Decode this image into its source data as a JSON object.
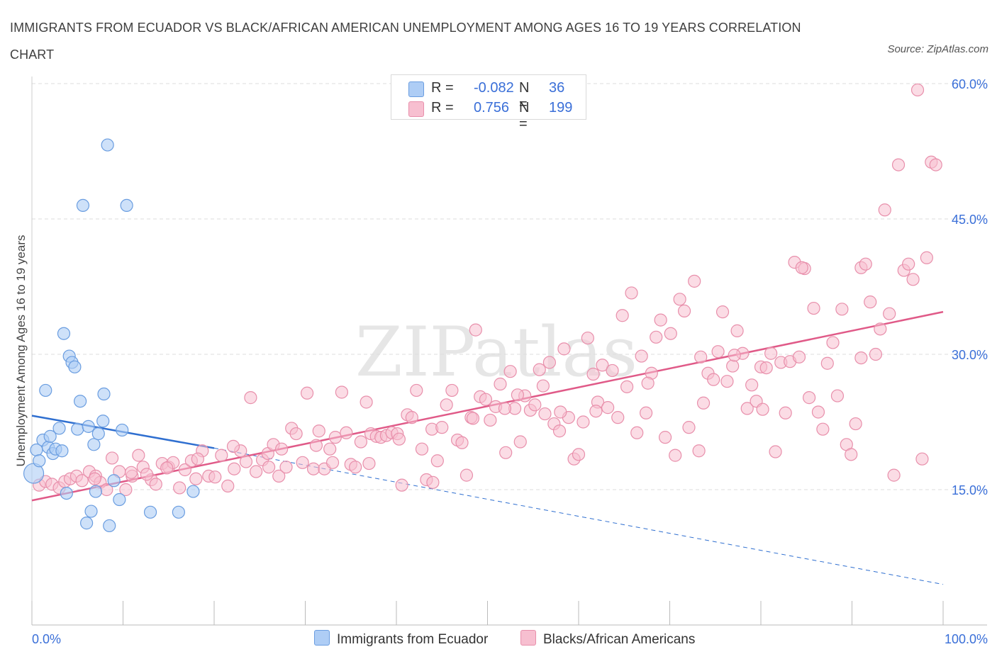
{
  "title": "IMMIGRANTS FROM ECUADOR VS BLACK/AFRICAN AMERICAN UNEMPLOYMENT AMONG AGES 16 TO 19 YEARS CORRELATION CHART",
  "source": "Source: ZipAtlas.com",
  "watermark": "ZIPatlas",
  "legend": {
    "rows": [
      {
        "r_label": "R =",
        "r_value": "-0.082",
        "n_label": "N =",
        "n_value": "36",
        "color": "#9ec3f2"
      },
      {
        "r_label": "R =",
        "r_value": "0.756",
        "n_label": "N =",
        "n_value": "199",
        "color": "#f6b6c9"
      }
    ]
  },
  "bottom_legend": [
    {
      "label": "Immigrants from Ecuador",
      "color": "#9ec3f2"
    },
    {
      "label": "Blacks/African Americans",
      "color": "#f6b6c9"
    }
  ],
  "colors": {
    "blue_fill": "#aecdf5",
    "blue_stroke": "#6a9de0",
    "blue_line": "#2f6fd0",
    "pink_fill": "#f7bfd0",
    "pink_stroke": "#e88fab",
    "pink_line": "#e05a88",
    "tick_label": "#3a6fd8",
    "grid": "#dddddd"
  },
  "chart_data": {
    "type": "scatter",
    "title": "IMMIGRANTS FROM ECUADOR VS BLACK/AFRICAN AMERICAN UNEMPLOYMENT AMONG AGES 16 TO 19 YEARS CORRELATION CHART",
    "xlabel": "",
    "ylabel": "Unemployment Among Ages 16 to 19 years",
    "xlim": [
      0,
      100
    ],
    "ylim": [
      0,
      60
    ],
    "x_tick_labels": [
      "0.0%",
      "100.0%"
    ],
    "y_ticks": [
      15,
      30,
      45,
      60
    ],
    "y_tick_labels": [
      "15.0%",
      "30.0%",
      "45.0%",
      "60.0%"
    ],
    "grid": true,
    "legend_position": "top-center",
    "series": [
      {
        "name": "Immigrants from Ecuador",
        "trend": {
          "x": [
            0,
            20
          ],
          "y": [
            23.2,
            19.6
          ],
          "extended_to": [
            100,
            4.5
          ]
        },
        "points": [
          [
            0.2,
            16.8
          ],
          [
            0.5,
            19.4
          ],
          [
            0.8,
            18.2
          ],
          [
            1.2,
            20.5
          ],
          [
            1.5,
            26
          ],
          [
            1.8,
            19.7
          ],
          [
            2.0,
            20.9
          ],
          [
            2.3,
            19.0
          ],
          [
            2.6,
            19.5
          ],
          [
            3.0,
            21.8
          ],
          [
            3.3,
            19.3
          ],
          [
            3.5,
            32.3
          ],
          [
            3.8,
            14.6
          ],
          [
            4.1,
            29.8
          ],
          [
            4.4,
            29.1
          ],
          [
            4.7,
            28.6
          ],
          [
            5.0,
            21.7
          ],
          [
            5.3,
            24.8
          ],
          [
            6.0,
            11.3
          ],
          [
            6.2,
            22.0
          ],
          [
            6.5,
            12.6
          ],
          [
            6.8,
            20.0
          ],
          [
            7.0,
            14.8
          ],
          [
            7.3,
            21.2
          ],
          [
            7.8,
            22.6
          ],
          [
            7.9,
            25.6
          ],
          [
            8.3,
            53.2
          ],
          [
            8.5,
            11.0
          ],
          [
            9.0,
            16.0
          ],
          [
            9.6,
            13.9
          ],
          [
            9.9,
            21.6
          ],
          [
            10.4,
            46.5
          ],
          [
            5.6,
            46.5
          ],
          [
            13.0,
            12.5
          ],
          [
            16.1,
            12.5
          ],
          [
            17.7,
            14.8
          ]
        ]
      },
      {
        "name": "Blacks/African Americans",
        "trend": {
          "x": [
            0,
            100
          ],
          "y": [
            13.8,
            34.7
          ]
        },
        "points": [
          [
            0.8,
            15.5
          ],
          [
            1.5,
            15.9
          ],
          [
            2.2,
            15.6
          ],
          [
            3.0,
            15.2
          ],
          [
            3.6,
            15.9
          ],
          [
            4.2,
            16.2
          ],
          [
            4.9,
            16.5
          ],
          [
            5.5,
            16.0
          ],
          [
            6.3,
            17.0
          ],
          [
            7.0,
            16.5
          ],
          [
            7.5,
            15.8
          ],
          [
            8.2,
            15.0
          ],
          [
            8.8,
            18.5
          ],
          [
            9.6,
            17.0
          ],
          [
            10.3,
            15.0
          ],
          [
            11.0,
            16.5
          ],
          [
            11.7,
            18.8
          ],
          [
            12.2,
            17.5
          ],
          [
            13.1,
            16.1
          ],
          [
            13.6,
            15.6
          ],
          [
            14.3,
            17.9
          ],
          [
            15.0,
            17.5
          ],
          [
            15.5,
            18.0
          ],
          [
            16.2,
            15.2
          ],
          [
            16.8,
            17.2
          ],
          [
            17.5,
            18.2
          ],
          [
            18.0,
            16.2
          ],
          [
            18.7,
            19.3
          ],
          [
            19.4,
            16.5
          ],
          [
            20.1,
            16.4
          ],
          [
            20.8,
            18.8
          ],
          [
            21.5,
            15.4
          ],
          [
            22.2,
            17.3
          ],
          [
            22.9,
            19.3
          ],
          [
            23.5,
            18.1
          ],
          [
            24.0,
            25.2
          ],
          [
            24.6,
            17.0
          ],
          [
            25.3,
            18.3
          ],
          [
            25.9,
            19.0
          ],
          [
            26.5,
            20.0
          ],
          [
            27.1,
            16.5
          ],
          [
            27.9,
            17.5
          ],
          [
            28.5,
            21.8
          ],
          [
            29.0,
            21.2
          ],
          [
            29.7,
            18.0
          ],
          [
            30.2,
            25.7
          ],
          [
            30.9,
            17.3
          ],
          [
            31.5,
            21.5
          ],
          [
            32.1,
            17.3
          ],
          [
            32.7,
            19.5
          ],
          [
            33.3,
            20.8
          ],
          [
            34.0,
            25.8
          ],
          [
            34.5,
            21.3
          ],
          [
            35.0,
            17.8
          ],
          [
            35.5,
            17.5
          ],
          [
            36.1,
            20.3
          ],
          [
            36.7,
            24.7
          ],
          [
            37.2,
            21.2
          ],
          [
            37.8,
            20.9
          ],
          [
            38.3,
            20.8
          ],
          [
            38.9,
            21.0
          ],
          [
            39.5,
            21.3
          ],
          [
            40.1,
            21.2
          ],
          [
            40.6,
            15.5
          ],
          [
            41.2,
            23.3
          ],
          [
            41.7,
            23.0
          ],
          [
            42.2,
            26.0
          ],
          [
            42.8,
            19.5
          ],
          [
            43.3,
            16.1
          ],
          [
            43.9,
            21.7
          ],
          [
            44.5,
            18.2
          ],
          [
            45.0,
            21.9
          ],
          [
            45.5,
            24.4
          ],
          [
            46.1,
            26.0
          ],
          [
            46.7,
            20.5
          ],
          [
            47.2,
            20.2
          ],
          [
            47.7,
            16.6
          ],
          [
            48.2,
            23.0
          ],
          [
            48.7,
            32.7
          ],
          [
            49.2,
            25.3
          ],
          [
            49.8,
            25.0
          ],
          [
            50.3,
            22.7
          ],
          [
            50.9,
            24.2
          ],
          [
            51.4,
            26.7
          ],
          [
            52.0,
            19.1
          ],
          [
            52.5,
            28.1
          ],
          [
            53.0,
            24.0
          ],
          [
            53.6,
            20.3
          ],
          [
            54.1,
            25.4
          ],
          [
            54.7,
            23.8
          ],
          [
            55.2,
            24.4
          ],
          [
            55.7,
            28.3
          ],
          [
            56.3,
            23.4
          ],
          [
            56.8,
            29.1
          ],
          [
            57.3,
            22.3
          ],
          [
            57.9,
            21.5
          ],
          [
            58.4,
            30.6
          ],
          [
            58.9,
            23.0
          ],
          [
            59.5,
            18.4
          ],
          [
            60.0,
            18.9
          ],
          [
            60.5,
            22.5
          ],
          [
            61.0,
            31.8
          ],
          [
            61.6,
            27.8
          ],
          [
            62.1,
            24.7
          ],
          [
            62.6,
            28.8
          ],
          [
            63.2,
            24.1
          ],
          [
            63.7,
            28.2
          ],
          [
            64.3,
            23.0
          ],
          [
            64.8,
            34.3
          ],
          [
            65.3,
            26.4
          ],
          [
            65.8,
            36.8
          ],
          [
            66.4,
            21.3
          ],
          [
            66.9,
            29.8
          ],
          [
            67.4,
            23.5
          ],
          [
            68.0,
            27.9
          ],
          [
            68.5,
            31.9
          ],
          [
            69.0,
            33.8
          ],
          [
            69.5,
            20.8
          ],
          [
            70.1,
            32.3
          ],
          [
            70.6,
            18.8
          ],
          [
            71.1,
            36.1
          ],
          [
            71.6,
            34.8
          ],
          [
            72.1,
            21.9
          ],
          [
            72.7,
            38.1
          ],
          [
            73.2,
            19.3
          ],
          [
            73.7,
            24.6
          ],
          [
            74.2,
            27.9
          ],
          [
            74.8,
            27.2
          ],
          [
            75.3,
            30.3
          ],
          [
            75.8,
            34.7
          ],
          [
            76.3,
            27.0
          ],
          [
            76.9,
            28.7
          ],
          [
            77.4,
            32.6
          ],
          [
            78.0,
            30.1
          ],
          [
            78.5,
            24.0
          ],
          [
            79.0,
            26.6
          ],
          [
            79.5,
            24.8
          ],
          [
            80.0,
            28.6
          ],
          [
            80.6,
            28.5
          ],
          [
            81.1,
            30.1
          ],
          [
            81.6,
            19.2
          ],
          [
            82.2,
            29.1
          ],
          [
            82.7,
            23.5
          ],
          [
            83.2,
            29.2
          ],
          [
            83.7,
            40.2
          ],
          [
            84.2,
            29.7
          ],
          [
            84.8,
            39.5
          ],
          [
            85.3,
            25.2
          ],
          [
            85.8,
            35.1
          ],
          [
            86.3,
            23.6
          ],
          [
            86.8,
            21.7
          ],
          [
            87.3,
            29.0
          ],
          [
            87.9,
            31.3
          ],
          [
            88.4,
            25.4
          ],
          [
            88.9,
            35.0
          ],
          [
            89.4,
            20.0
          ],
          [
            89.9,
            18.9
          ],
          [
            90.4,
            22.3
          ],
          [
            91.0,
            39.6
          ],
          [
            91.5,
            40.0
          ],
          [
            92.0,
            35.8
          ],
          [
            92.6,
            30.0
          ],
          [
            93.1,
            32.8
          ],
          [
            93.6,
            46.0
          ],
          [
            94.1,
            34.5
          ],
          [
            94.6,
            16.6
          ],
          [
            95.1,
            51.0
          ],
          [
            95.7,
            39.3
          ],
          [
            96.2,
            40.0
          ],
          [
            96.7,
            38.3
          ],
          [
            97.2,
            59.3
          ],
          [
            97.7,
            18.4
          ],
          [
            98.2,
            40.7
          ],
          [
            98.7,
            51.3
          ],
          [
            99.2,
            51.0
          ],
          [
            84.5,
            39.6
          ],
          [
            26.0,
            17.5
          ],
          [
            33.0,
            18.0
          ],
          [
            37.0,
            17.9
          ],
          [
            44.0,
            15.8
          ],
          [
            53.3,
            25.5
          ],
          [
            58.0,
            23.6
          ],
          [
            18.2,
            18.4
          ],
          [
            14.8,
            17.4
          ],
          [
            12.6,
            16.7
          ],
          [
            6.9,
            16.2
          ],
          [
            10.9,
            16.9
          ],
          [
            22.1,
            19.8
          ],
          [
            27.4,
            19.5
          ],
          [
            31.2,
            19.9
          ],
          [
            40.3,
            20.6
          ],
          [
            48.4,
            22.9
          ],
          [
            51.9,
            24.0
          ],
          [
            56.1,
            26.5
          ],
          [
            61.9,
            23.7
          ],
          [
            67.6,
            26.8
          ],
          [
            73.4,
            29.7
          ],
          [
            77.1,
            29.9
          ],
          [
            80.2,
            23.9
          ],
          [
            91.0,
            29.6
          ]
        ]
      }
    ]
  }
}
